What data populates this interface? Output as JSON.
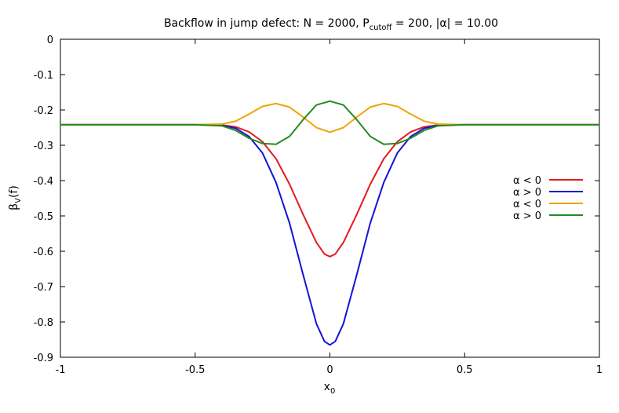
{
  "chart_data": {
    "type": "line",
    "title": {
      "main": "Backflow in jump defect: N = 2000, P",
      "sub": "cutoff",
      "rest": " = 200, |α| = 10.00"
    },
    "xlabel": {
      "main": "x",
      "sub": "0"
    },
    "ylabel": {
      "main": "β",
      "sub": "V",
      "rest": "(f)"
    },
    "xlim": [
      -1,
      1
    ],
    "ylim": [
      -0.9,
      0
    ],
    "xticks": [
      -1,
      -0.5,
      0,
      0.5,
      1
    ],
    "xtick_labels": [
      "-1",
      "-0.5",
      "0",
      "0.5",
      "1"
    ],
    "yticks": [
      0,
      -0.1,
      -0.2,
      -0.3,
      -0.4,
      -0.5,
      -0.6,
      -0.7,
      -0.8,
      -0.9
    ],
    "ytick_labels": [
      "0",
      "-0.1",
      "-0.2",
      "-0.3",
      "-0.4",
      "-0.5",
      "-0.6",
      "-0.7",
      "-0.8",
      "-0.9"
    ],
    "grid": false,
    "legend_position": "right",
    "series": [
      {
        "name": "α < 0",
        "color": "#e41a1c",
        "points": [
          [
            -1,
            -0.242
          ],
          [
            -0.5,
            -0.242
          ],
          [
            -0.45,
            -0.242
          ],
          [
            -0.4,
            -0.243
          ],
          [
            -0.35,
            -0.248
          ],
          [
            -0.3,
            -0.262
          ],
          [
            -0.25,
            -0.29
          ],
          [
            -0.2,
            -0.338
          ],
          [
            -0.15,
            -0.41
          ],
          [
            -0.1,
            -0.495
          ],
          [
            -0.05,
            -0.575
          ],
          [
            -0.02,
            -0.608
          ],
          [
            0,
            -0.615
          ],
          [
            0.02,
            -0.608
          ],
          [
            0.05,
            -0.575
          ],
          [
            0.1,
            -0.495
          ],
          [
            0.15,
            -0.41
          ],
          [
            0.2,
            -0.338
          ],
          [
            0.25,
            -0.29
          ],
          [
            0.3,
            -0.262
          ],
          [
            0.35,
            -0.248
          ],
          [
            0.4,
            -0.243
          ],
          [
            0.45,
            -0.242
          ],
          [
            0.5,
            -0.242
          ],
          [
            1,
            -0.242
          ]
        ]
      },
      {
        "name": "α > 0",
        "color": "#1414d6",
        "points": [
          [
            -1,
            -0.242
          ],
          [
            -0.5,
            -0.242
          ],
          [
            -0.45,
            -0.242
          ],
          [
            -0.4,
            -0.244
          ],
          [
            -0.35,
            -0.252
          ],
          [
            -0.3,
            -0.275
          ],
          [
            -0.25,
            -0.322
          ],
          [
            -0.2,
            -0.405
          ],
          [
            -0.15,
            -0.52
          ],
          [
            -0.1,
            -0.665
          ],
          [
            -0.05,
            -0.805
          ],
          [
            -0.02,
            -0.855
          ],
          [
            0,
            -0.865
          ],
          [
            0.02,
            -0.855
          ],
          [
            0.05,
            -0.805
          ],
          [
            0.1,
            -0.665
          ],
          [
            0.15,
            -0.52
          ],
          [
            0.2,
            -0.405
          ],
          [
            0.25,
            -0.322
          ],
          [
            0.3,
            -0.275
          ],
          [
            0.35,
            -0.252
          ],
          [
            0.4,
            -0.244
          ],
          [
            0.45,
            -0.242
          ],
          [
            0.5,
            -0.242
          ],
          [
            1,
            -0.242
          ]
        ]
      },
      {
        "name": "α < 0",
        "color": "#f0a30a",
        "points": [
          [
            -1,
            -0.242
          ],
          [
            -0.5,
            -0.242
          ],
          [
            -0.4,
            -0.24
          ],
          [
            -0.35,
            -0.232
          ],
          [
            -0.3,
            -0.212
          ],
          [
            -0.25,
            -0.19
          ],
          [
            -0.2,
            -0.182
          ],
          [
            -0.15,
            -0.192
          ],
          [
            -0.1,
            -0.22
          ],
          [
            -0.05,
            -0.25
          ],
          [
            0,
            -0.263
          ],
          [
            0.05,
            -0.25
          ],
          [
            0.1,
            -0.22
          ],
          [
            0.15,
            -0.192
          ],
          [
            0.2,
            -0.182
          ],
          [
            0.25,
            -0.19
          ],
          [
            0.3,
            -0.212
          ],
          [
            0.35,
            -0.232
          ],
          [
            0.4,
            -0.24
          ],
          [
            0.5,
            -0.242
          ],
          [
            1,
            -0.242
          ]
        ]
      },
      {
        "name": "α > 0",
        "color": "#238b23",
        "points": [
          [
            -1,
            -0.242
          ],
          [
            -0.5,
            -0.242
          ],
          [
            -0.4,
            -0.245
          ],
          [
            -0.35,
            -0.258
          ],
          [
            -0.3,
            -0.28
          ],
          [
            -0.25,
            -0.295
          ],
          [
            -0.2,
            -0.297
          ],
          [
            -0.15,
            -0.275
          ],
          [
            -0.1,
            -0.228
          ],
          [
            -0.05,
            -0.186
          ],
          [
            0,
            -0.175
          ],
          [
            0.05,
            -0.186
          ],
          [
            0.1,
            -0.228
          ],
          [
            0.15,
            -0.275
          ],
          [
            0.2,
            -0.297
          ],
          [
            0.25,
            -0.295
          ],
          [
            0.3,
            -0.28
          ],
          [
            0.35,
            -0.258
          ],
          [
            0.4,
            -0.245
          ],
          [
            0.5,
            -0.242
          ],
          [
            1,
            -0.242
          ]
        ]
      }
    ]
  }
}
